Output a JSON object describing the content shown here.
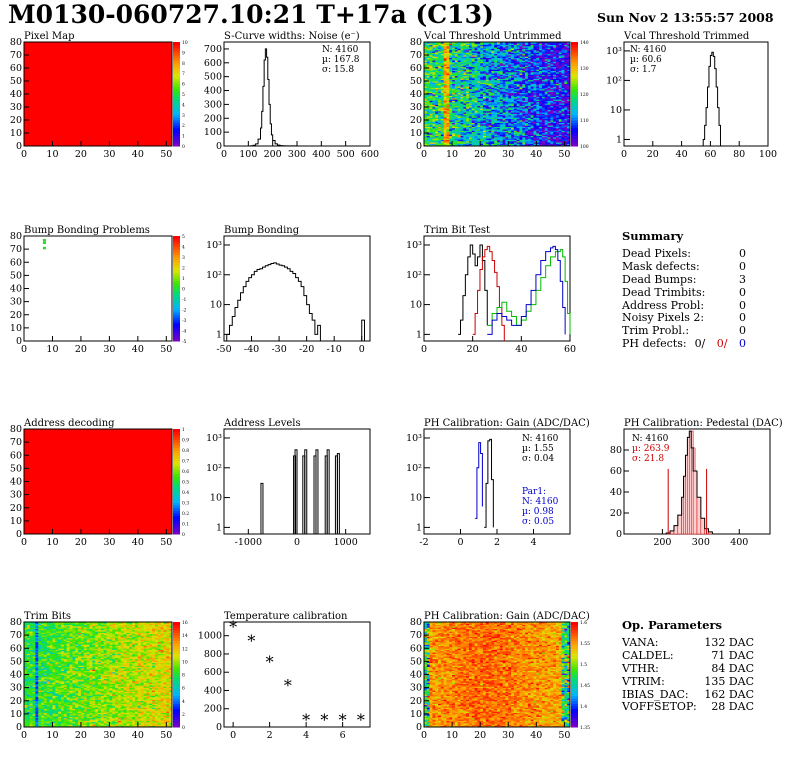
{
  "title": "M0130-060727.10:21 T+17a (C13)",
  "timestamp": "Sun Nov  2 13:55:57 2008",
  "panels": {
    "pixel_map": {
      "title": "Pixel Map",
      "xticks": [
        "0",
        "10",
        "20",
        "30",
        "40",
        "50"
      ],
      "yticks": [
        "0",
        "10",
        "20",
        "30",
        "40",
        "50",
        "60",
        "70",
        "80"
      ],
      "palette": [
        "0",
        "1",
        "2",
        "3",
        "4",
        "5",
        "6",
        "7",
        "8",
        "9",
        "10"
      ],
      "color": "#ff0000"
    },
    "scurve": {
      "title": "S-Curve widths: Noise (e⁻)",
      "stats": [
        "N: 4160",
        "µ: 167.8",
        "σ: 15.8"
      ],
      "xticks": [
        "0",
        "100",
        "200",
        "300",
        "400",
        "500",
        "600"
      ],
      "yticks": [
        "0",
        "100",
        "200",
        "300",
        "400",
        "500",
        "600",
        "700"
      ]
    },
    "vcal_untrimmed": {
      "title": "Vcal Threshold Untrimmed",
      "xticks": [
        "0",
        "10",
        "20",
        "30",
        "40",
        "50"
      ],
      "yticks": [
        "0",
        "10",
        "20",
        "30",
        "40",
        "50",
        "60",
        "70",
        "80"
      ],
      "palette": [
        "100",
        "110",
        "120",
        "130",
        "140"
      ]
    },
    "vcal_trimmed": {
      "title": "Vcal Threshold Trimmed",
      "stats": [
        "N: 4160",
        "µ: 60.6",
        "σ:  1.7"
      ],
      "xticks": [
        "0",
        "20",
        "40",
        "60",
        "80",
        "100"
      ],
      "yticks": [
        "1",
        "10",
        "10²",
        "10³"
      ]
    },
    "bump_problems": {
      "title": "Bump Bonding Problems",
      "xticks": [
        "0",
        "10",
        "20",
        "30",
        "40",
        "50"
      ],
      "yticks": [
        "0",
        "10",
        "20",
        "30",
        "40",
        "50",
        "60",
        "70",
        "80"
      ],
      "palette": [
        "-5",
        "-4",
        "-3",
        "-2",
        "-1",
        "0",
        "1",
        "2",
        "3",
        "4",
        "5"
      ]
    },
    "bump_bonding": {
      "title": "Bump Bonding",
      "xticks": [
        "-50",
        "-40",
        "-30",
        "-20",
        "-10",
        "0"
      ],
      "yticks": [
        "1",
        "10",
        "10²",
        "10³"
      ]
    },
    "trim_bit_test": {
      "title": "Trim Bit Test",
      "xticks": [
        "0",
        "20",
        "40",
        "60"
      ],
      "yticks": [
        "1",
        "10",
        "10²",
        "10³"
      ],
      "colors": [
        "#000000",
        "#cc0000",
        "#00bb00",
        "#0000cc"
      ]
    },
    "summary": {
      "header": "Summary",
      "rows": [
        {
          "label": "Dead Pixels:",
          "value": "0"
        },
        {
          "label": "Mask defects:",
          "value": "0"
        },
        {
          "label": "Dead Bumps:",
          "value": "3"
        },
        {
          "label": "Dead Trimbits:",
          "value": "0"
        },
        {
          "label": "Address Probl:",
          "value": "0"
        },
        {
          "label": "Noisy Pixels 2:",
          "value": "0"
        },
        {
          "label": "Trim Probl.:",
          "value": "0"
        }
      ],
      "ph_defects": {
        "label": "PH defects:",
        "v1": "0/",
        "v2": "0/",
        "v3": "0",
        "c2": "#cc0000",
        "c3": "#0000cc"
      }
    },
    "address_decoding": {
      "title": "Address decoding",
      "xticks": [
        "0",
        "10",
        "20",
        "30",
        "40",
        "50"
      ],
      "yticks": [
        "0",
        "10",
        "20",
        "30",
        "40",
        "50",
        "60",
        "70",
        "80"
      ],
      "palette": [
        "0",
        "0.1",
        "0.2",
        "0.3",
        "0.4",
        "0.5",
        "0.6",
        "0.7",
        "0.8",
        "0.9",
        "1"
      ]
    },
    "address_levels": {
      "title": "Address Levels",
      "xticks": [
        "-1000",
        "0",
        "1000"
      ],
      "yticks": [
        "1",
        "10",
        "10²",
        "10³"
      ]
    },
    "ph_gain": {
      "title": "PH Calibration: Gain (ADC/DAC)",
      "stats": [
        "N: 4160",
        "µ: 1.55",
        "σ: 0.04"
      ],
      "stats2": [
        "Par1:",
        "N: 4160",
        "µ: 0.98",
        "σ: 0.05"
      ],
      "xticks": [
        "-2",
        "0",
        "2",
        "4"
      ],
      "yticks": [
        "1",
        "10",
        "10²",
        "10³"
      ]
    },
    "ph_pedestal": {
      "title": "PH Calibration: Pedestal (DAC)",
      "stats": [
        "N: 4160",
        "µ: 263.9",
        "σ: 21.8"
      ],
      "xticks": [
        "200",
        "300",
        "400"
      ],
      "yticks": [
        "0",
        "20",
        "40",
        "60",
        "80"
      ]
    },
    "trim_bits": {
      "title": "Trim Bits",
      "xticks": [
        "0",
        "10",
        "20",
        "30",
        "40",
        "50"
      ],
      "yticks": [
        "0",
        "10",
        "20",
        "30",
        "40",
        "50",
        "60",
        "70",
        "80"
      ],
      "palette": [
        "0",
        "2",
        "4",
        "6",
        "8",
        "10",
        "12",
        "14",
        "16"
      ]
    },
    "temperature": {
      "title": "Temperature calibration",
      "xticks": [
        "0",
        "2",
        "4",
        "6"
      ],
      "yticks": [
        "0",
        "200",
        "400",
        "600",
        "800",
        "1000"
      ]
    },
    "ph_gain_map": {
      "title": "PH Calibration: Gain (ADC/DAC)",
      "xticks": [
        "0",
        "10",
        "20",
        "30",
        "40",
        "50"
      ],
      "yticks": [
        "0",
        "10",
        "20",
        "30",
        "40",
        "50",
        "60",
        "70",
        "80"
      ],
      "palette": [
        "1.35",
        "1.4",
        "1.45",
        "1.5",
        "1.55",
        "1.6"
      ]
    },
    "op_params": {
      "header": "Op. Parameters",
      "rows": [
        {
          "label": "VANA:",
          "value": "132 DAC"
        },
        {
          "label": "CALDEL:",
          "value": "71 DAC"
        },
        {
          "label": "VTHR:",
          "value": "84 DAC"
        },
        {
          "label": "VTRIM:",
          "value": "135 DAC"
        },
        {
          "label": "IBIAS_DAC:",
          "value": "162 DAC"
        },
        {
          "label": "VOFFSETOP:",
          "value": "28 DAC"
        }
      ]
    }
  },
  "chart_data": [
    {
      "type": "heatmap",
      "title": "Pixel Map",
      "xlim": [
        0,
        52
      ],
      "ylim": [
        0,
        80
      ],
      "z_uniform": 10
    },
    {
      "type": "line",
      "title": "S-Curve widths: Noise (e⁻)",
      "xlim": [
        0,
        600
      ],
      "ylim": [
        0,
        750
      ],
      "x": [
        100,
        110,
        120,
        130,
        140,
        150,
        155,
        160,
        165,
        170,
        175,
        180,
        185,
        190,
        195,
        200,
        210,
        220,
        230,
        240,
        250,
        260,
        280,
        300
      ],
      "y": [
        0,
        2,
        5,
        15,
        50,
        130,
        250,
        430,
        620,
        700,
        640,
        480,
        300,
        160,
        80,
        40,
        15,
        6,
        3,
        2,
        1,
        1,
        1,
        0
      ]
    },
    {
      "type": "heatmap",
      "title": "Vcal Threshold Untrimmed",
      "xlim": [
        0,
        52
      ],
      "ylim": [
        0,
        80
      ],
      "zlim": [
        100,
        145
      ]
    },
    {
      "type": "line",
      "title": "Vcal Threshold Trimmed",
      "log_y": true,
      "xlim": [
        0,
        100
      ],
      "ylim": [
        0.6,
        2000
      ],
      "x": [
        54,
        55,
        56,
        57,
        58,
        59,
        60,
        61,
        62,
        63,
        64,
        65,
        66,
        67
      ],
      "y": [
        0,
        1,
        3,
        12,
        60,
        300,
        700,
        900,
        650,
        250,
        60,
        12,
        3,
        0
      ]
    },
    {
      "type": "heatmap",
      "title": "Bump Bonding Problems",
      "xlim": [
        0,
        52
      ],
      "ylim": [
        0,
        80
      ],
      "zlim": [
        -5,
        5
      ],
      "points": [
        {
          "x": 7,
          "y": 77,
          "v": 1
        },
        {
          "x": 7,
          "y": 75,
          "v": 1
        },
        {
          "x": 7,
          "y": 71,
          "v": 1
        }
      ]
    },
    {
      "type": "line",
      "title": "Bump Bonding",
      "log_y": true,
      "xlim": [
        -50,
        3
      ],
      "ylim": [
        0.6,
        2000
      ],
      "x": [
        -50,
        -49,
        -48,
        -47,
        -46,
        -45,
        -44,
        -43,
        -42,
        -41,
        -40,
        -39,
        -38,
        -37,
        -36,
        -35,
        -34,
        -33,
        -32,
        -31,
        -30,
        -29,
        -28,
        -27,
        -26,
        -25,
        -24,
        -23,
        -22,
        -21,
        -20,
        -19,
        -18,
        -17,
        -16,
        -15,
        -14,
        -13,
        -12,
        -11,
        -10,
        -9,
        -8,
        -7,
        -6,
        -5,
        -4,
        -3,
        -2,
        -1,
        0,
        1
      ],
      "y": [
        0,
        1,
        2,
        4,
        8,
        14,
        25,
        40,
        60,
        80,
        100,
        130,
        150,
        160,
        180,
        200,
        220,
        240,
        250,
        230,
        210,
        200,
        180,
        160,
        130,
        110,
        80,
        60,
        40,
        20,
        10,
        5,
        3,
        1,
        2,
        0,
        0,
        0,
        0,
        0,
        0,
        0,
        0,
        0,
        0,
        0,
        0,
        0,
        0,
        0,
        3,
        0
      ]
    },
    {
      "type": "line",
      "title": "Trim Bit Test",
      "log_y": true,
      "xlim": [
        0,
        60
      ],
      "ylim": [
        0.6,
        2000
      ],
      "series": [
        {
          "x": [
            14,
            15,
            16,
            17,
            18,
            19,
            20,
            21,
            22,
            23,
            24,
            25,
            26
          ],
          "y": [
            1,
            3,
            20,
            100,
            400,
            1000,
            500,
            200,
            400,
            1000,
            300,
            30,
            2
          ]
        },
        {
          "x": [
            20,
            21,
            22,
            23,
            24,
            25,
            26,
            27,
            28,
            29,
            30,
            31,
            32,
            33
          ],
          "y": [
            1,
            5,
            30,
            150,
            400,
            700,
            900,
            600,
            300,
            120,
            40,
            8,
            2,
            0
          ]
        },
        {
          "x": [
            26,
            28,
            30,
            32,
            34,
            36,
            38,
            40,
            42,
            44,
            46,
            48,
            50,
            52,
            54,
            56,
            57,
            58,
            59,
            60
          ],
          "y": [
            2,
            5,
            8,
            12,
            6,
            4,
            2,
            3,
            6,
            10,
            30,
            80,
            200,
            400,
            600,
            700,
            400,
            60,
            5,
            1
          ]
        },
        {
          "x": [
            26,
            28,
            30,
            32,
            34,
            36,
            38,
            40,
            42,
            44,
            46,
            48,
            50,
            52,
            53,
            54,
            55,
            56,
            57,
            58
          ],
          "y": [
            1,
            3,
            5,
            4,
            3,
            2,
            2,
            4,
            10,
            30,
            100,
            300,
            600,
            800,
            900,
            700,
            300,
            60,
            8,
            1
          ]
        }
      ]
    },
    {
      "type": "heatmap",
      "title": "Address decoding",
      "xlim": [
        0,
        52
      ],
      "ylim": [
        0,
        80
      ],
      "z_uniform": 1
    },
    {
      "type": "bar",
      "title": "Address Levels",
      "log_y": true,
      "xlim": [
        -1500,
        1500
      ],
      "ylim": [
        0.6,
        2000
      ],
      "x": [
        -720,
        -50,
        -20,
        140,
        180,
        370,
        410,
        600,
        640,
        810,
        850
      ],
      "y": [
        30,
        250,
        400,
        250,
        400,
        250,
        400,
        250,
        400,
        250,
        300
      ]
    },
    {
      "type": "line",
      "title": "PH Calibration: Gain (ADC/DAC)",
      "log_y": true,
      "xlim": [
        -2,
        6
      ],
      "ylim": [
        0.6,
        2000
      ],
      "series": [
        {
          "x": [
            1.3,
            1.4,
            1.5,
            1.6,
            1.7,
            1.8
          ],
          "y": [
            1,
            30,
            800,
            900,
            40,
            1
          ]
        },
        {
          "x": [
            0.8,
            0.9,
            1.0,
            1.1,
            1.2
          ],
          "y": [
            2,
            100,
            700,
            300,
            5
          ]
        }
      ]
    },
    {
      "type": "bar",
      "title": "PH Calibration: Pedestal (DAC)",
      "xlim": [
        100,
        480
      ],
      "ylim": [
        0,
        100
      ],
      "x": [
        200,
        210,
        220,
        230,
        240,
        250,
        255,
        260,
        265,
        270,
        275,
        280,
        290,
        300,
        310,
        320,
        330
      ],
      "y": [
        0,
        1,
        3,
        8,
        18,
        35,
        55,
        75,
        92,
        98,
        82,
        60,
        35,
        15,
        5,
        2,
        0
      ]
    },
    {
      "type": "heatmap",
      "title": "Trim Bits",
      "xlim": [
        0,
        52
      ],
      "ylim": [
        0,
        80
      ],
      "zlim": [
        0,
        16
      ]
    },
    {
      "type": "scatter",
      "title": "Temperature calibration",
      "xlim": [
        -0.5,
        7.5
      ],
      "ylim": [
        0,
        1150
      ],
      "x": [
        0,
        1,
        2,
        3,
        4,
        5,
        6,
        7
      ],
      "y": [
        1100,
        950,
        720,
        460,
        80,
        80,
        80,
        80
      ]
    },
    {
      "type": "heatmap",
      "title": "PH Calibration: Gain (ADC/DAC)",
      "xlim": [
        0,
        52
      ],
      "ylim": [
        0,
        80
      ],
      "zlim": [
        1.33,
        1.62
      ]
    }
  ]
}
